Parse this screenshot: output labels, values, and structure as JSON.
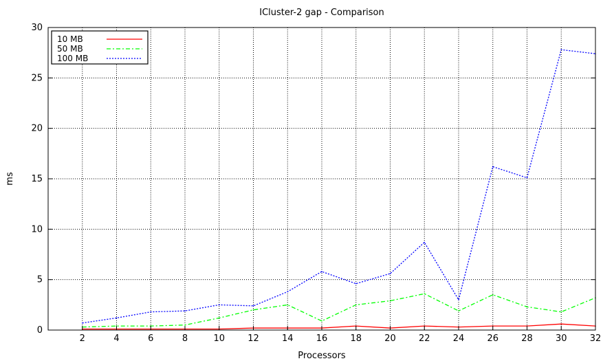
{
  "chart_data": {
    "type": "line",
    "title": "ICluster-2 gap - Comparison",
    "xlabel": "Processors",
    "ylabel": "ms",
    "xlim": [
      0,
      32
    ],
    "ylim": [
      0,
      30
    ],
    "xticks": [
      2,
      4,
      6,
      8,
      10,
      12,
      14,
      16,
      18,
      20,
      22,
      24,
      26,
      28,
      30,
      32
    ],
    "yticks": [
      0,
      5,
      10,
      15,
      20,
      25,
      30
    ],
    "grid": true,
    "legend_position": "top-left",
    "x": [
      2,
      4,
      6,
      8,
      10,
      12,
      14,
      16,
      18,
      20,
      22,
      24,
      26,
      28,
      30,
      32
    ],
    "series": [
      {
        "name": "10 MB",
        "color": "#ff0000",
        "dash": "solid",
        "values": [
          0.1,
          0.1,
          0.1,
          0.1,
          0.1,
          0.2,
          0.2,
          0.2,
          0.4,
          0.2,
          0.4,
          0.3,
          0.4,
          0.4,
          0.6,
          0.4
        ]
      },
      {
        "name": "50 MB",
        "color": "#00ff00",
        "dash": "dashdot",
        "values": [
          0.3,
          0.4,
          0.4,
          0.5,
          1.2,
          2.0,
          2.5,
          0.9,
          2.5,
          2.9,
          3.6,
          1.9,
          3.5,
          2.3,
          1.8,
          3.2
        ]
      },
      {
        "name": "100 MB",
        "color": "#0000ff",
        "dash": "dotted",
        "values": [
          0.7,
          1.2,
          1.8,
          1.9,
          2.5,
          2.4,
          3.8,
          5.8,
          4.6,
          5.6,
          8.7,
          3.0,
          16.2,
          15.1,
          27.8,
          27.4
        ]
      }
    ]
  }
}
